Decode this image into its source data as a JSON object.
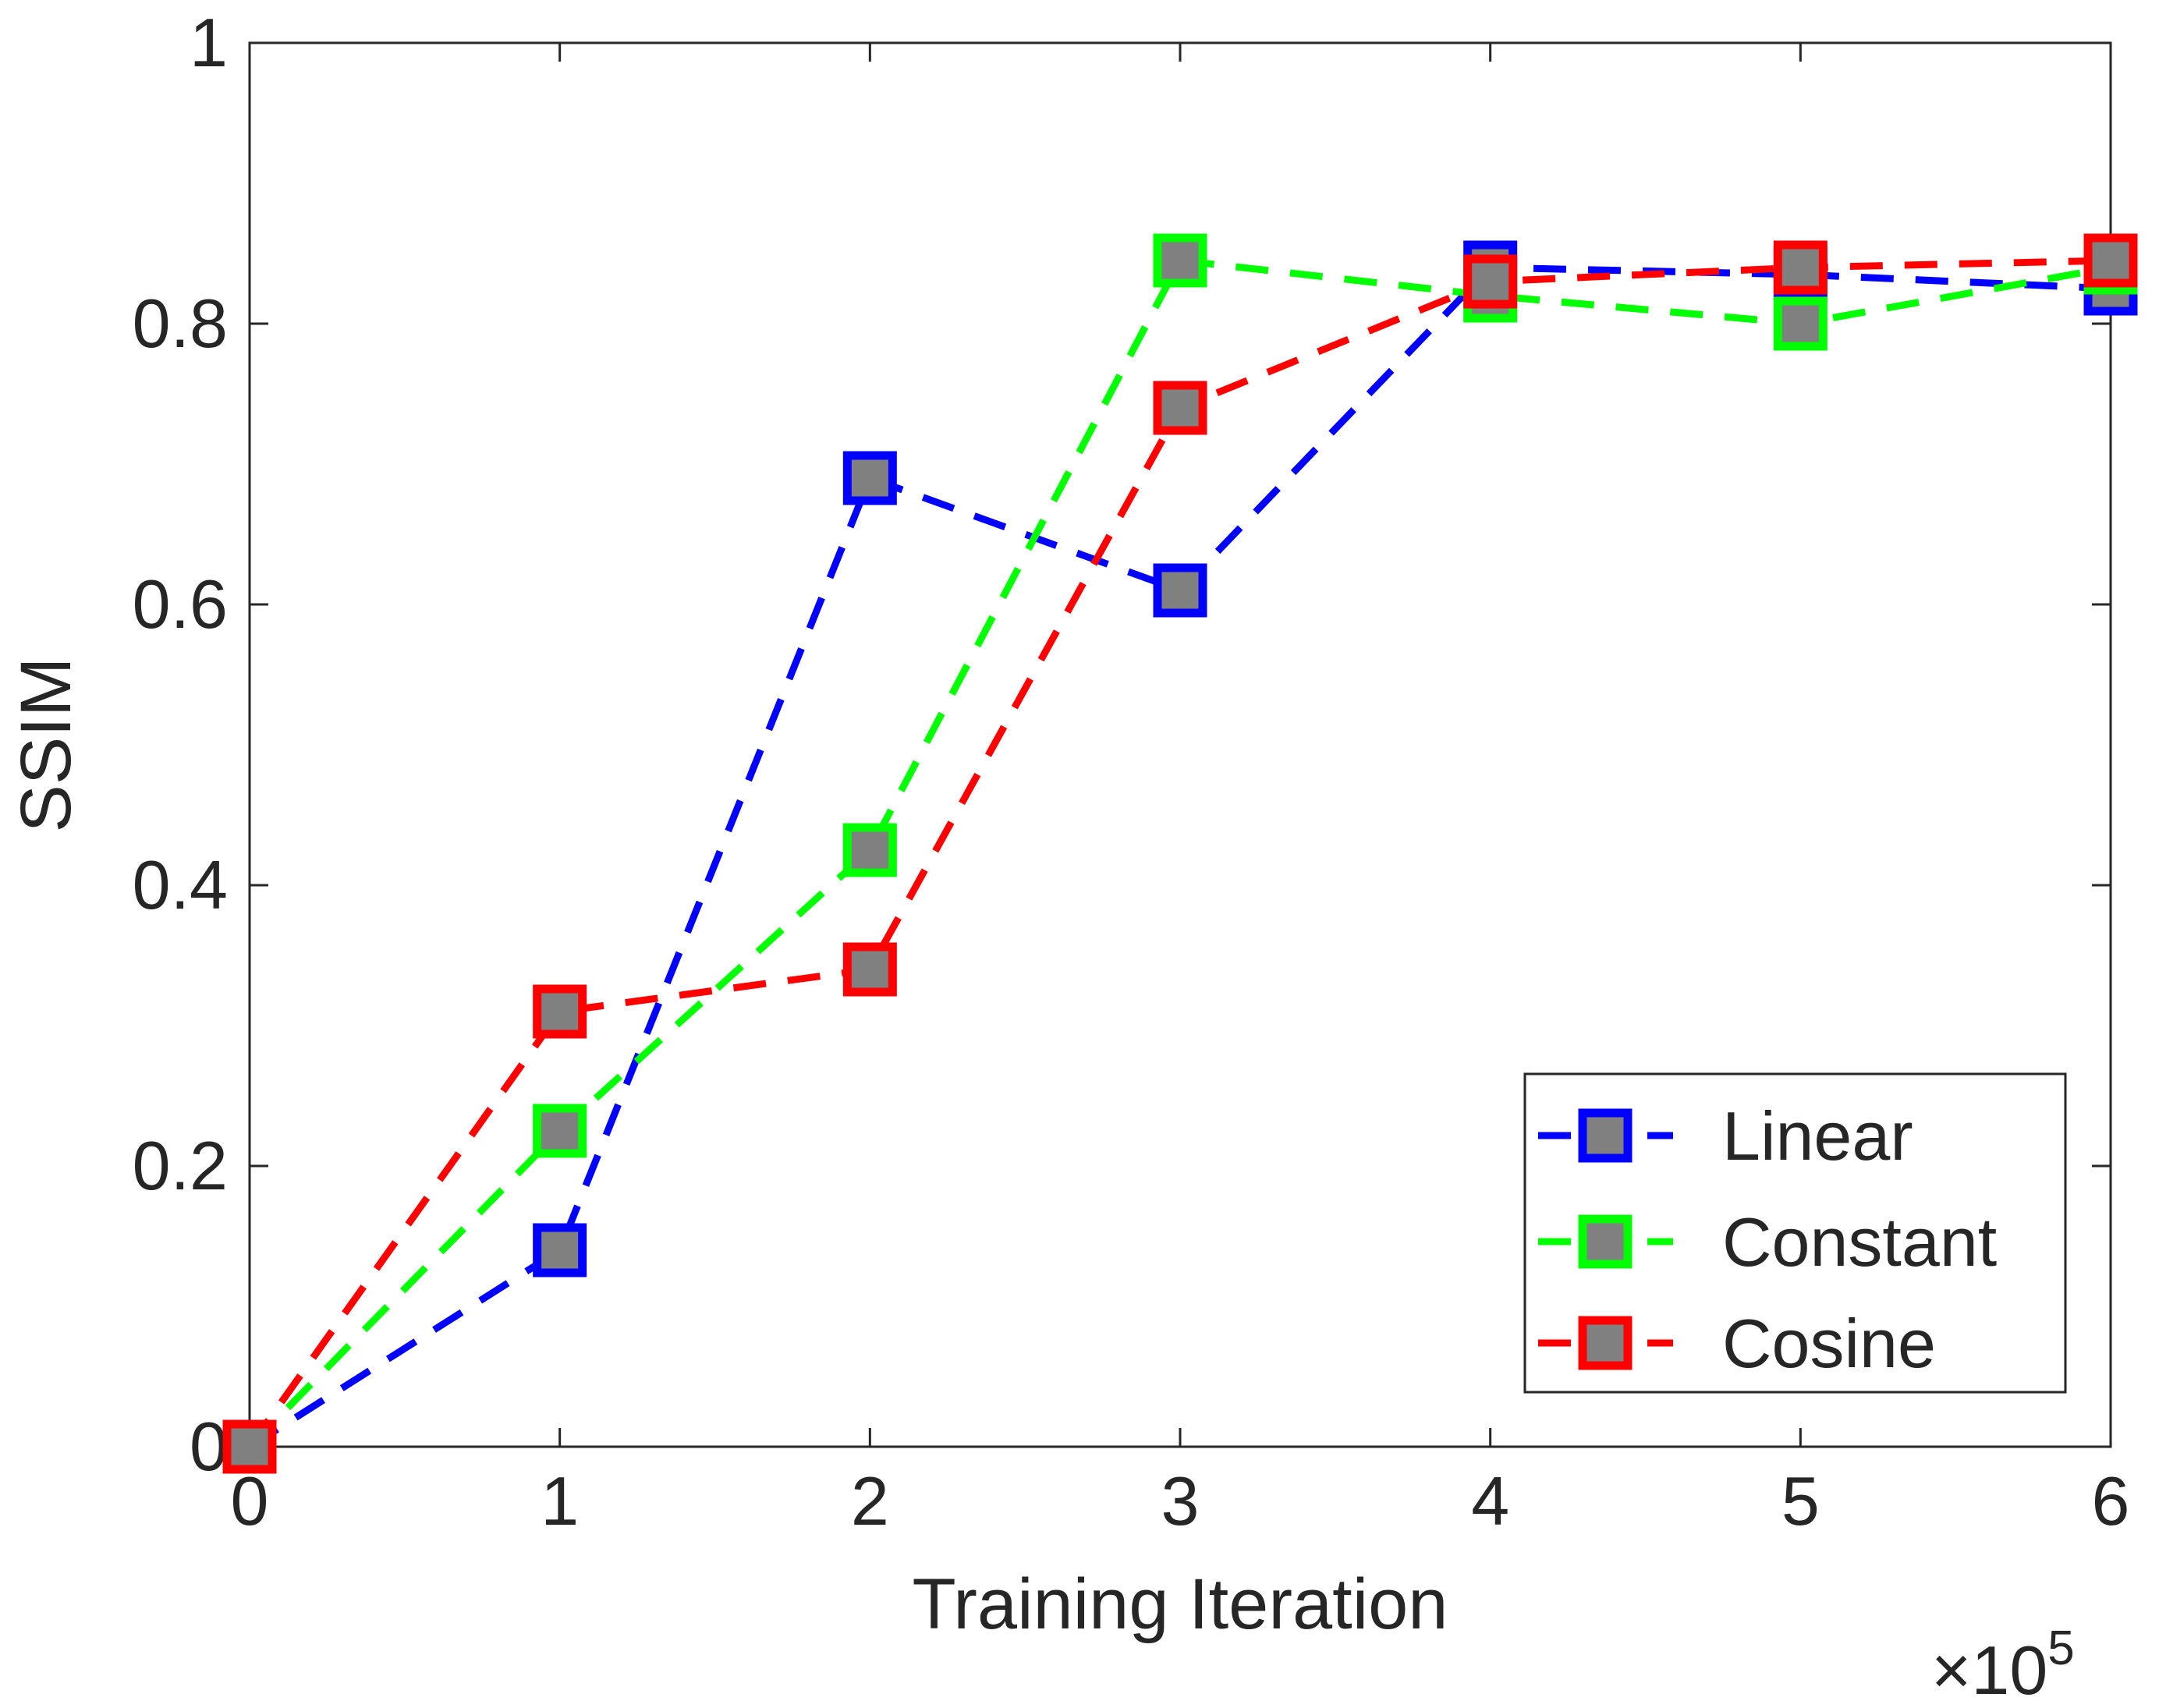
{
  "chart_data": {
    "type": "line",
    "title": "",
    "xlabel": "Training Iteration",
    "ylabel": "SSIM",
    "x_multiplier_label": {
      "prefix": "×10",
      "exponent": "5"
    },
    "x": [
      0,
      1,
      2,
      3,
      4,
      5,
      6
    ],
    "xlim": [
      0,
      6
    ],
    "ylim": [
      0,
      1
    ],
    "xticks": [
      "0",
      "1",
      "2",
      "3",
      "4",
      "5",
      "6"
    ],
    "yticks": [
      "0",
      "0.2",
      "0.4",
      "0.6",
      "0.8",
      "1"
    ],
    "grid": false,
    "legend_position": "bottom-right",
    "marker": {
      "shape": "square",
      "fill": "#808080"
    },
    "series": [
      {
        "name": "Linear",
        "color": "#0000ff",
        "values": [
          0.0,
          0.14,
          0.69,
          0.61,
          0.84,
          0.835,
          0.825
        ]
      },
      {
        "name": "Constant",
        "color": "#00ff00",
        "values": [
          0.0,
          0.225,
          0.425,
          0.845,
          0.82,
          0.8,
          0.84
        ]
      },
      {
        "name": "Cosine",
        "color": "#ff0000",
        "values": [
          0.0,
          0.31,
          0.34,
          0.74,
          0.83,
          0.84,
          0.845
        ]
      }
    ]
  }
}
